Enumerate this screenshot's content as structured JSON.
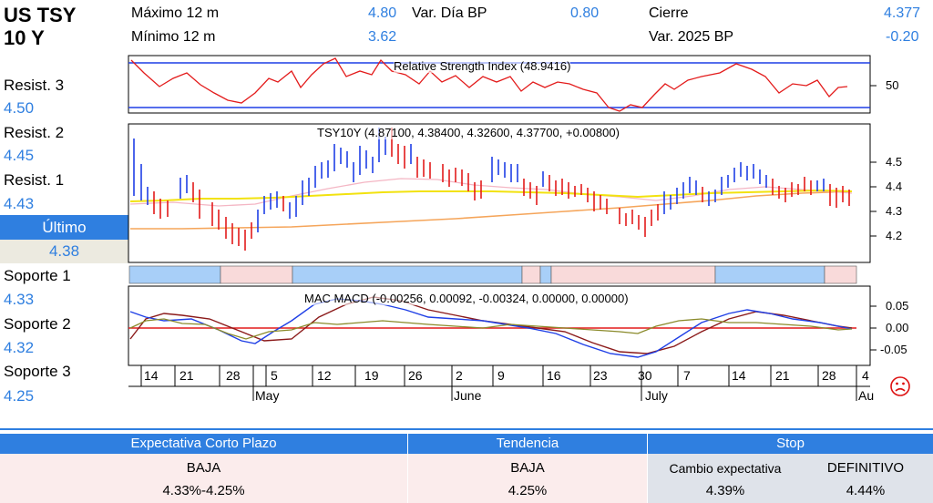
{
  "instrument": {
    "line1": "US TSY",
    "line2": "10 Y"
  },
  "stats": {
    "max_label": "Máximo 12 m",
    "max_value": "4.80",
    "min_label": "Mínimo 12 m",
    "min_value": "3.62",
    "var_dia_label": "Var. Día BP",
    "var_dia_value": "0.80",
    "cierre_label": "Cierre",
    "cierre_value": "4.377",
    "var_2025_label": "Var. 2025 BP",
    "var_2025_value": "-0.20"
  },
  "levels": {
    "resist3_label": "Resist. 3",
    "resist3_value": "4.50",
    "resist2_label": "Resist. 2",
    "resist2_value": "4.45",
    "resist1_label": "Resist. 1",
    "resist1_value": "4.43",
    "ultimo_label": "Último",
    "ultimo_value": "4.38",
    "soporte1_label": "Soporte 1",
    "soporte1_value": "4.33",
    "soporte2_label": "Soporte 2",
    "soporte2_value": "4.32",
    "soporte3_label": "Soporte 3",
    "soporte3_value": "4.25"
  },
  "charts": {
    "rsi_label": "Relative Strength Index (48.9416)",
    "rsi_tick": "50",
    "price_label": "TSY10Y (4.87100, 4.38400, 4.32600, 4.37700, +0.00800)",
    "price_ticks": [
      "4.5",
      "4.4",
      "4.3",
      "4.2"
    ],
    "macd_label": "MAC MACD (-0.00256, 0.00092, -0.00324, 0.00000, 0.00000)",
    "macd_ticks": [
      "0.05",
      "0.00",
      "-0.05"
    ],
    "x_days": [
      "14",
      "21",
      "28",
      "5",
      "12",
      "19",
      "26",
      "2",
      "9",
      "16",
      "23",
      "30",
      "7",
      "14",
      "21",
      "28",
      "4"
    ],
    "x_months": [
      "May",
      "June",
      "July",
      "Au"
    ],
    "colors": {
      "up": "#1f3fe6",
      "down": "#e31b1b",
      "band_blue": "#a8cff8",
      "band_pink": "#f9dada"
    }
  },
  "bottom": {
    "expectativa_header": "Expectativa Corto Plazo",
    "tendencia_header": "Tendencia",
    "stop_header": "Stop",
    "expectativa_value": "BAJA",
    "expectativa_range": "4.33%-4.25%",
    "tendencia_value": "BAJA",
    "tendencia_level": "4.25%",
    "cambio_label": "Cambio expectativa",
    "definitivo_label": "DEFINITIVO",
    "cambio_value": "4.39%",
    "definitivo_value": "4.44%"
  },
  "icons": {
    "sad_face": "sad-face-icon"
  }
}
